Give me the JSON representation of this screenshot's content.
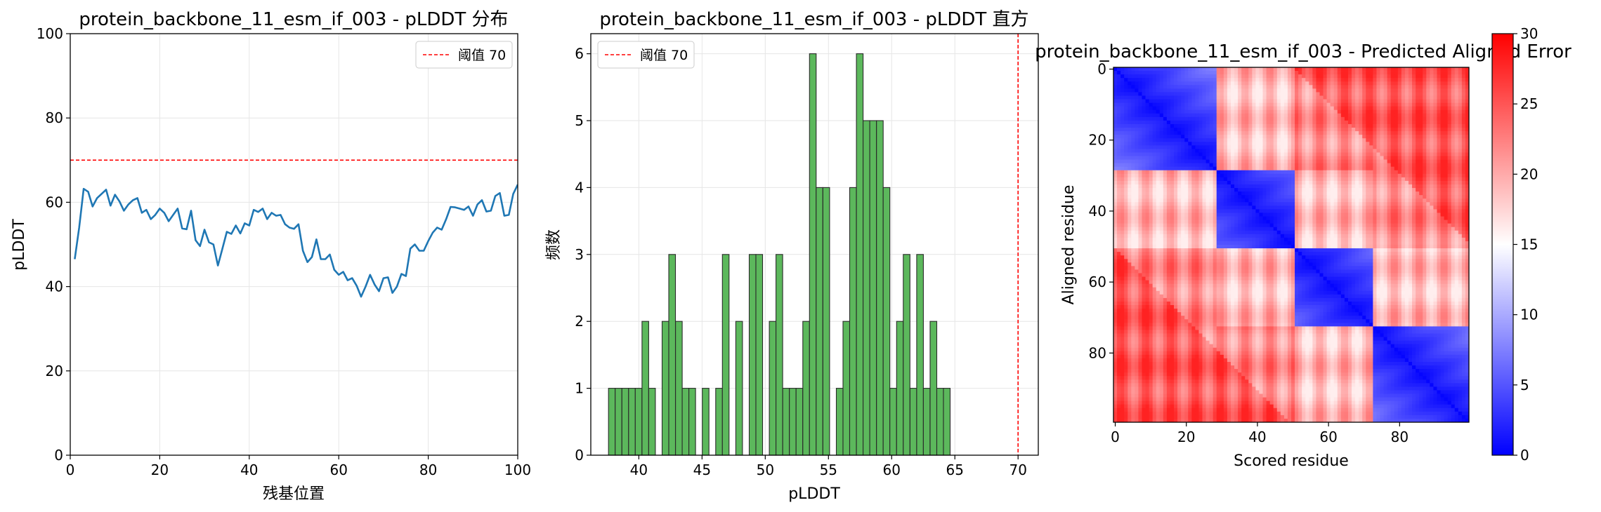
{
  "chart_data": [
    {
      "type": "line",
      "title": "protein_backbone_11_esm_if_003 - pLDDT 分布",
      "xlabel": "残基位置",
      "ylabel": "pLDDT",
      "xlim": [
        0,
        100
      ],
      "ylim": [
        0,
        100
      ],
      "xticks": [
        0,
        20,
        40,
        60,
        80,
        100
      ],
      "yticks": [
        0,
        20,
        40,
        60,
        80,
        100
      ],
      "grid": true,
      "legend_position": "top-right",
      "line_color": "#1f77b4",
      "threshold": {
        "value": 70,
        "label": "阈值 70",
        "color": "#ff0000",
        "style": "dashed"
      },
      "series": [
        {
          "x": [
            1,
            2,
            3,
            4,
            5,
            6,
            7,
            8,
            9,
            10,
            11,
            12,
            13,
            14,
            15,
            16,
            17,
            18,
            19,
            20,
            21,
            22,
            23,
            24,
            25,
            26,
            27,
            28,
            29,
            30,
            31,
            32,
            33,
            34,
            35,
            36,
            37,
            38,
            39,
            40,
            41,
            42,
            43,
            44,
            45,
            46,
            47,
            48,
            49,
            50,
            51,
            52,
            53,
            54,
            55,
            56,
            57,
            58,
            59,
            60,
            61,
            62,
            63,
            64,
            65,
            66,
            67,
            68,
            69,
            70,
            71,
            72,
            73,
            74,
            75,
            76,
            77,
            78,
            79,
            80,
            81,
            82,
            83,
            84,
            85,
            86,
            87,
            88,
            89,
            90,
            91,
            92,
            93,
            94,
            95,
            96,
            97,
            98,
            99,
            100
          ],
          "values": [
            46.5,
            54,
            63.2,
            62.5,
            59,
            61,
            62,
            63,
            59.2,
            61.8,
            60.2,
            58,
            59.5,
            60.5,
            61,
            57.5,
            58.2,
            56,
            57,
            58.5,
            57.5,
            55.5,
            57,
            58.5,
            53.8,
            53.6,
            58,
            51,
            49.6,
            53.5,
            50.5,
            50,
            45,
            49,
            53,
            52.5,
            54.5,
            52.6,
            55,
            54.5,
            58.2,
            57.7,
            58.5,
            56,
            57.5,
            56.8,
            57,
            54.8,
            54,
            53.7,
            54.8,
            48.5,
            45.8,
            47,
            51.2,
            46.5,
            46.5,
            47.6,
            44,
            42.8,
            43.5,
            41.5,
            42,
            40.2,
            37.6,
            40,
            42.8,
            40.5,
            38.9,
            42,
            42.2,
            38.5,
            40,
            43,
            42.5,
            49,
            50,
            48.5,
            48.5,
            50.8,
            52.8,
            54,
            53.5,
            56,
            58.9,
            58.8,
            58.5,
            58.2,
            59,
            56.8,
            59.5,
            60.5,
            57.8,
            58,
            61.5,
            62.2,
            56.8,
            57,
            62,
            64.2
          ]
        }
      ]
    },
    {
      "type": "bar",
      "title": "protein_backbone_11_esm_if_003 - pLDDT 直方",
      "xlabel": "pLDDT",
      "ylabel": "频数",
      "xlim": [
        36.2,
        71.6
      ],
      "ylim": [
        0,
        6.3
      ],
      "xticks": [
        40,
        45,
        50,
        55,
        60,
        65,
        70
      ],
      "yticks": [
        0,
        1,
        2,
        3,
        4,
        5,
        6
      ],
      "grid": true,
      "legend_position": "top-left",
      "bar_color": "#5cb85c",
      "edge_color": "#2a2a2a",
      "bin_width": 0.53,
      "threshold": {
        "value": 70,
        "label": "阈值 70",
        "color": "#ff0000",
        "style": "dashed"
      },
      "bins": [
        {
          "x": 37.6,
          "count": 1
        },
        {
          "x": 38.13,
          "count": 1
        },
        {
          "x": 38.66,
          "count": 1
        },
        {
          "x": 39.19,
          "count": 1
        },
        {
          "x": 39.72,
          "count": 1
        },
        {
          "x": 40.25,
          "count": 2
        },
        {
          "x": 40.78,
          "count": 1
        },
        {
          "x": 41.31,
          "count": 0
        },
        {
          "x": 41.84,
          "count": 2
        },
        {
          "x": 42.37,
          "count": 3
        },
        {
          "x": 42.9,
          "count": 2
        },
        {
          "x": 43.43,
          "count": 1
        },
        {
          "x": 43.96,
          "count": 1
        },
        {
          "x": 44.49,
          "count": 0
        },
        {
          "x": 45.02,
          "count": 1
        },
        {
          "x": 45.55,
          "count": 0
        },
        {
          "x": 46.08,
          "count": 1
        },
        {
          "x": 46.61,
          "count": 3
        },
        {
          "x": 47.14,
          "count": 0
        },
        {
          "x": 47.67,
          "count": 2
        },
        {
          "x": 48.2,
          "count": 0
        },
        {
          "x": 48.73,
          "count": 3
        },
        {
          "x": 49.26,
          "count": 3
        },
        {
          "x": 49.79,
          "count": 0
        },
        {
          "x": 50.32,
          "count": 2
        },
        {
          "x": 50.85,
          "count": 3
        },
        {
          "x": 51.38,
          "count": 1
        },
        {
          "x": 51.91,
          "count": 1
        },
        {
          "x": 52.44,
          "count": 1
        },
        {
          "x": 52.97,
          "count": 2
        },
        {
          "x": 53.5,
          "count": 6
        },
        {
          "x": 54.03,
          "count": 4
        },
        {
          "x": 54.56,
          "count": 4
        },
        {
          "x": 55.09,
          "count": 0
        },
        {
          "x": 55.62,
          "count": 1
        },
        {
          "x": 56.15,
          "count": 2
        },
        {
          "x": 56.68,
          "count": 4
        },
        {
          "x": 57.21,
          "count": 6
        },
        {
          "x": 57.74,
          "count": 5
        },
        {
          "x": 58.27,
          "count": 5
        },
        {
          "x": 58.8,
          "count": 5
        },
        {
          "x": 59.33,
          "count": 4
        },
        {
          "x": 59.86,
          "count": 1
        },
        {
          "x": 60.39,
          "count": 2
        },
        {
          "x": 60.92,
          "count": 3
        },
        {
          "x": 61.45,
          "count": 1
        },
        {
          "x": 61.98,
          "count": 3
        },
        {
          "x": 62.51,
          "count": 1
        },
        {
          "x": 63.04,
          "count": 2
        },
        {
          "x": 63.57,
          "count": 1
        },
        {
          "x": 64.1,
          "count": 1
        }
      ]
    },
    {
      "type": "heatmap",
      "title": "protein_backbone_11_esm_if_003 - Predicted Aligned Error",
      "xlabel": "Scored residue",
      "ylabel": "Aligned residue",
      "n_residues": 100,
      "xticks": [
        0,
        20,
        40,
        60,
        80
      ],
      "yticks": [
        0,
        20,
        40,
        60,
        80
      ],
      "colormap": "bwr",
      "colorbar": {
        "min": 0,
        "max": 30,
        "ticks": [
          0,
          5,
          10,
          15,
          20,
          25,
          30
        ]
      },
      "domains": [
        {
          "start": 0,
          "end": 28
        },
        {
          "start": 29,
          "end": 50
        },
        {
          "start": 51,
          "end": 72
        },
        {
          "start": 73,
          "end": 99
        }
      ],
      "within_domain_error": [
        1,
        9
      ],
      "between_domain_error": [
        16,
        28
      ]
    }
  ]
}
